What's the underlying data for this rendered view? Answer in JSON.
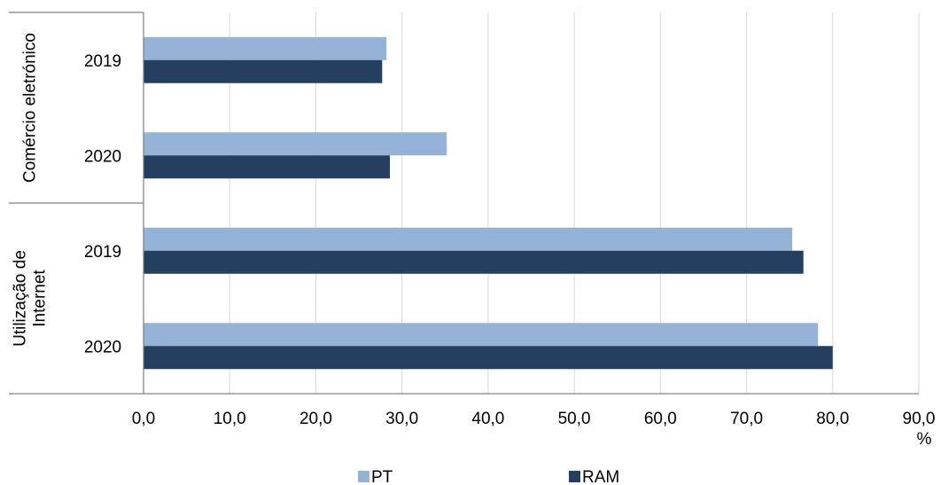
{
  "chart_data": {
    "type": "bar",
    "orientation": "horizontal",
    "title": "",
    "xlabel": "%",
    "ylabel": "",
    "xlim": [
      0,
      90
    ],
    "x_ticks": [
      "0,0",
      "10,0",
      "20,0",
      "30,0",
      "40,0",
      "50,0",
      "60,0",
      "70,0",
      "80,0",
      "90,0"
    ],
    "grid": true,
    "legend_position": "bottom",
    "groups": [
      {
        "label": "Comércio eletrónico",
        "categories": [
          "2019",
          "2020"
        ]
      },
      {
        "label": "Utilização de Internet",
        "label_lines": [
          "Utilização de",
          "Internet"
        ],
        "categories": [
          "2019",
          "2020"
        ]
      }
    ],
    "categories": [
      "Comércio eletrónico 2019",
      "Comércio eletrónico 2020",
      "Utilização de Internet 2019",
      "Utilização de Internet 2020"
    ],
    "series": [
      {
        "name": "PT",
        "color": "#95b3d7",
        "values": [
          28.2,
          35.2,
          75.3,
          78.3
        ]
      },
      {
        "name": "RAM",
        "color": "#243f60",
        "values": [
          27.7,
          28.6,
          76.6,
          80.0
        ]
      }
    ]
  }
}
